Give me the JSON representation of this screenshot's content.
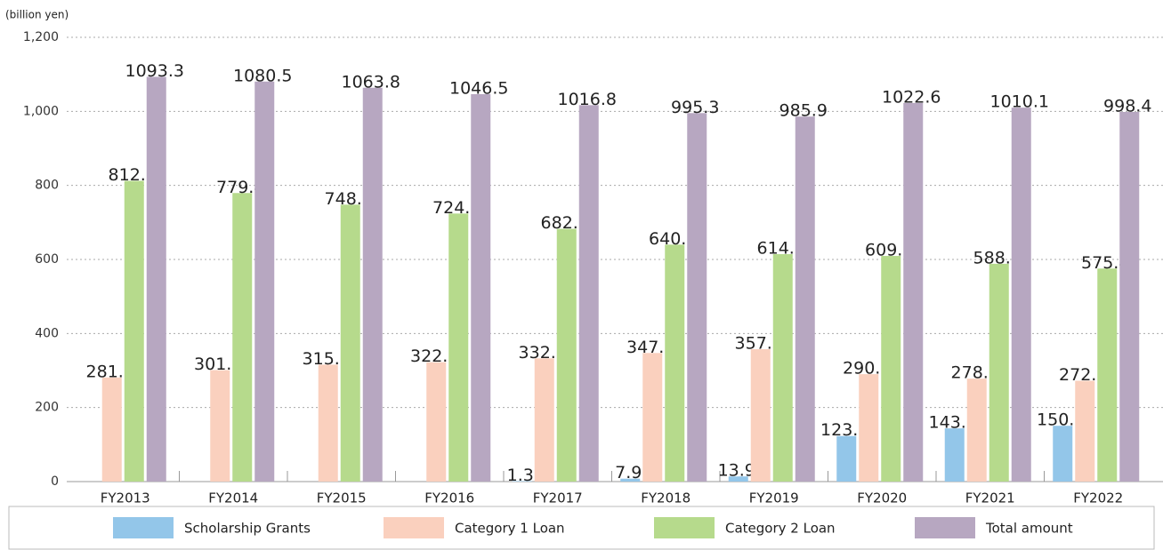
{
  "chart_data": {
    "type": "bar",
    "y_label": "(billion yen)",
    "categories": [
      "FY2013",
      "FY2014",
      "FY2015",
      "FY2016",
      "FY2017",
      "FY2018",
      "FY2019",
      "FY2020",
      "FY2021",
      "FY2022"
    ],
    "series": [
      {
        "name": "Scholarship Grants",
        "color": "#93c6e9",
        "values": [
          null,
          null,
          null,
          null,
          1.3,
          7.9,
          13.9,
          123.1,
          143.7,
          150.7
        ]
      },
      {
        "name": "Category 1 Loan",
        "color": "#fad0be",
        "values": [
          281.1,
          301.1,
          315.8,
          322.5,
          332.9,
          347.3,
          357.7,
          290.1,
          278.1,
          272.3
        ]
      },
      {
        "name": "Category 2 Loan",
        "color": "#b6da8c",
        "values": [
          812.3,
          779.4,
          748.0,
          724.0,
          682.7,
          640.0,
          614.3,
          609.5,
          588.3,
          575.4
        ],
        "value_labels": [
          "812.3",
          "779.4",
          "748.0",
          "724.0",
          "682.7",
          "640.0",
          "614.3",
          "609.5",
          "588.3",
          "575.4"
        ]
      },
      {
        "name": "Total amount",
        "color": "#b7a7c1",
        "values": [
          1093.3,
          1080.5,
          1063.8,
          1046.5,
          1016.8,
          995.3,
          985.9,
          1022.6,
          1010.1,
          998.4
        ]
      }
    ],
    "ylim": [
      0,
      1200
    ],
    "yticks": [
      0,
      200,
      400,
      600,
      800,
      {
        "value": 1000,
        "label": "1,000"
      },
      {
        "value": 1200,
        "label": "1,200"
      }
    ],
    "grid": true,
    "legend": "bottom"
  }
}
